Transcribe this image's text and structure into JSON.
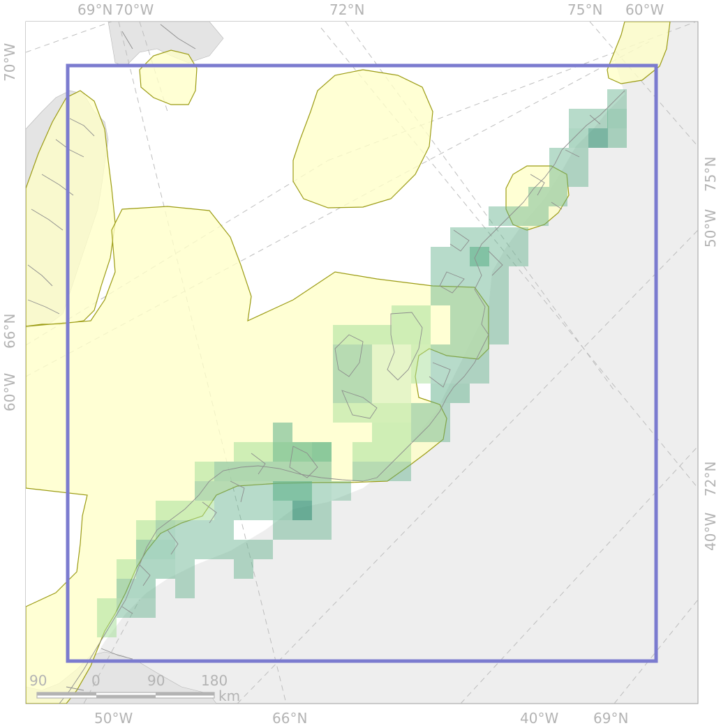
{
  "map": {
    "colors": {
      "panel_background": "#eeeeee",
      "land": "#ffffff",
      "land_outline": "#8c8c8c",
      "graticule": "#bdbdbd",
      "range_fill": "#ffffc8",
      "range_outline": "#9b9b12",
      "study_area_border": "#7b7bcf",
      "grid_low": "#a8e09a",
      "grid_mid": "#5fb08a",
      "grid_high": "#2f8f6f",
      "label_gray": "#b3b3b3"
    },
    "graticule_labels": {
      "top": [
        "69°N",
        "70°W",
        "72°N",
        "75°N",
        "60°W"
      ],
      "bottom": [
        "50°W",
        "66°N",
        "40°W",
        "69°N"
      ],
      "left": [
        "70°W",
        "66°N",
        "60°W"
      ],
      "right": [
        "75°N",
        "50°W",
        "72°N",
        "40°W"
      ]
    },
    "scale_bar": {
      "ticks": [
        "90",
        "0",
        "90",
        "180"
      ],
      "unit": "km"
    }
  }
}
